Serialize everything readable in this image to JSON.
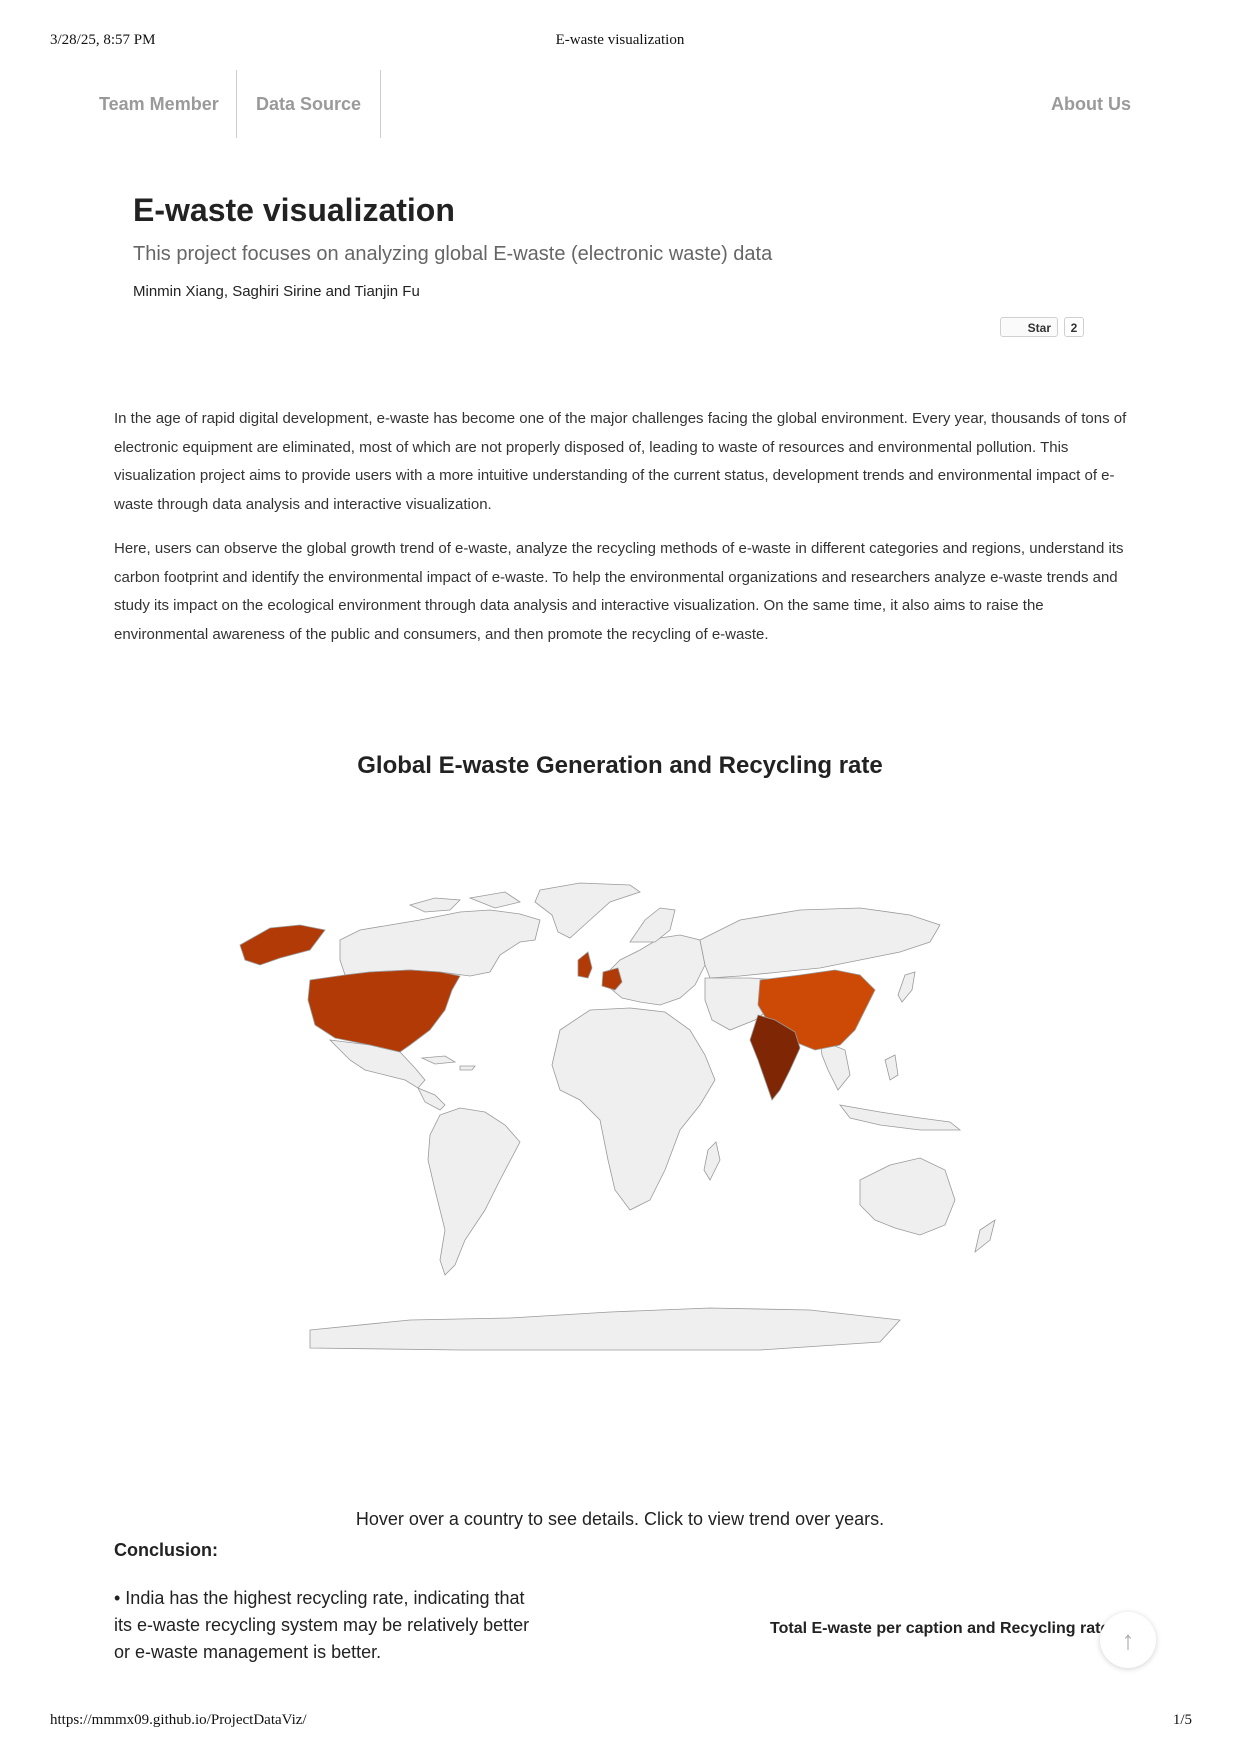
{
  "print": {
    "date": "3/28/25, 8:57 PM",
    "title": "E-waste visualization",
    "url": "https://mmmx09.github.io/ProjectDataViz/",
    "page": "1/5"
  },
  "nav": {
    "items": [
      {
        "label": "Team Member"
      },
      {
        "label": "Data Source"
      },
      {
        "label": "About Us"
      }
    ]
  },
  "hero": {
    "title": "E-waste visualization",
    "subtitle": "This project focuses on analyzing global E-waste (electronic waste) data",
    "authors": "Minmin Xiang, Saghiri Sirine and Tianjin Fu",
    "star_label": "Star",
    "star_count": "2"
  },
  "intro": {
    "p1": "In the age of rapid digital development, e-waste has become one of the major challenges facing the global environment. Every year, thousands of tons of electronic equipment are eliminated, most of which are not properly disposed of, leading to waste of resources and environmental pollution. This visualization project aims to provide users with a more intuitive understanding of the current status, development trends and environmental impact of e-waste through data analysis and interactive visualization.",
    "p2": "Here, users can observe the global growth trend of e-waste, analyze the recycling methods of e-waste in different categories and regions, understand its carbon footprint and identify the environmental impact of e-waste. To help the environmental organizations and researchers analyze e-waste trends and study its impact on the ecological environment through data analysis and interactive visualization. On the same time, it also aims to raise the environmental awareness of the public and consumers, and then promote the recycling of e-waste."
  },
  "map_section": {
    "title": "Global E-waste Generation and Recycling rate",
    "hint": "Hover over a country to see details. Click to view trend over years.",
    "colors": {
      "base": "#efefef",
      "border": "#9a9a9a",
      "usa": "#b13a06",
      "china": "#cc4a06",
      "india": "#7f2705",
      "uk": "#b13a06",
      "germany": "#b13a06"
    }
  },
  "conclusion": {
    "heading": "Conclusion:",
    "text": "• India has the highest recycling rate, indicating that its e-waste recycling system may be relatively better or e-waste management is better."
  },
  "side_caption": "Total E-waste per caption and Recycling rate",
  "back_to_top": {
    "icon": "arrow-up-icon",
    "glyph": "↑"
  }
}
